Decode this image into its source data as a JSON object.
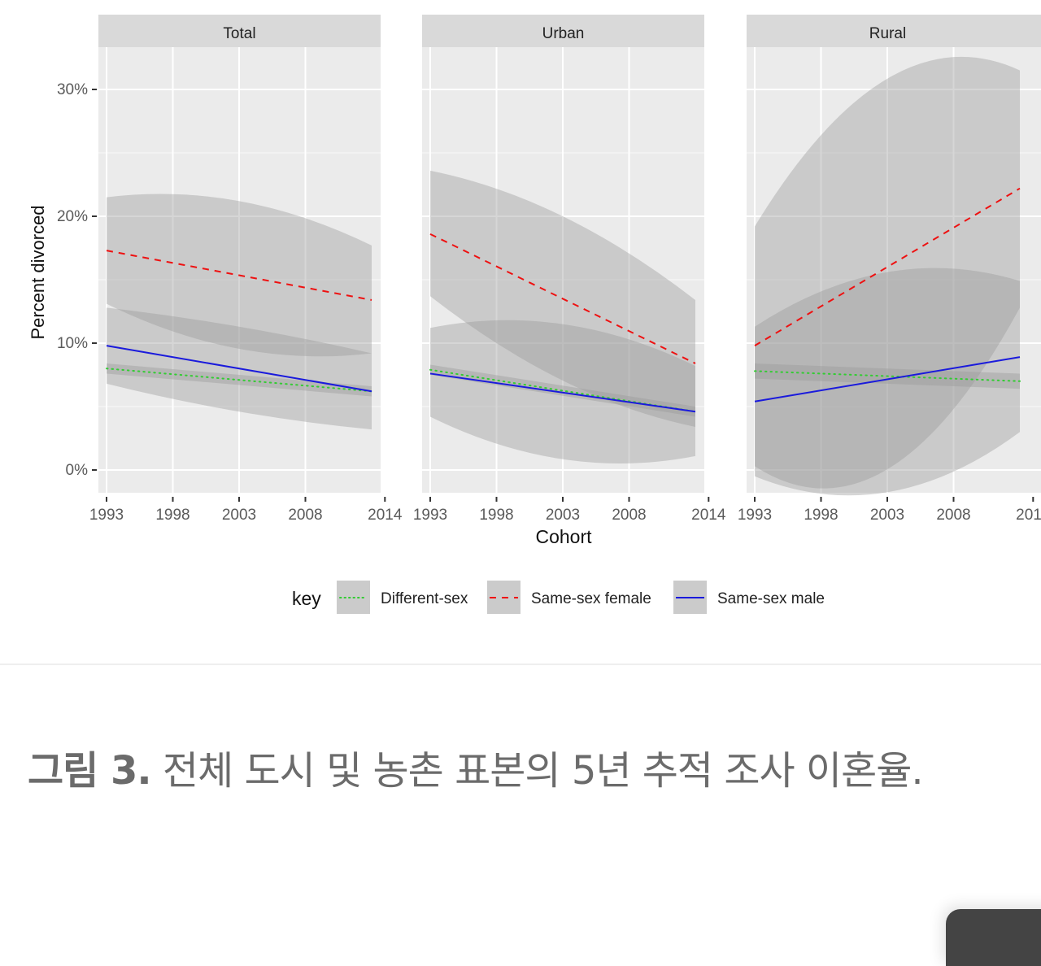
{
  "chart_data": {
    "type": "line",
    "title": "",
    "xlabel": "Cohort",
    "ylabel": "Percent divorced",
    "ylim": [
      -2,
      35
    ],
    "y_ticks": [
      "0%",
      "10%",
      "20%",
      "30%"
    ],
    "y_tick_values": [
      0,
      10,
      20,
      30
    ],
    "x_ticks": [
      "1993",
      "1998",
      "2003",
      "2008",
      "2014"
    ],
    "x_tick_values": [
      1993,
      1998,
      2003,
      2008,
      2014
    ],
    "grid": true,
    "legend": {
      "title": "key",
      "position": "bottom",
      "entries": [
        {
          "label": "Different-sex",
          "color": "#33cc33",
          "linetype": "dotted"
        },
        {
          "label": "Same-sex female",
          "color": "#ee1111",
          "linetype": "dashed"
        },
        {
          "label": "Same-sex male",
          "color": "#1a1adc",
          "linetype": "solid"
        }
      ]
    },
    "facets": [
      {
        "name": "Total",
        "x": [
          1993,
          2013
        ],
        "series": [
          {
            "name": "Different-sex",
            "values": [
              8.0,
              6.2
            ],
            "ci_lower": [
              7.6,
              5.8
            ],
            "ci_upper": [
              8.4,
              6.6
            ]
          },
          {
            "name": "Same-sex female",
            "values": [
              17.3,
              13.4
            ],
            "ci_lower": [
              13.1,
              9.2
            ],
            "ci_upper": [
              21.5,
              17.7
            ]
          },
          {
            "name": "Same-sex male",
            "values": [
              9.8,
              6.2
            ],
            "ci_lower": [
              6.8,
              3.2
            ],
            "ci_upper": [
              12.8,
              9.2
            ]
          }
        ]
      },
      {
        "name": "Urban",
        "x": [
          1993,
          2013
        ],
        "series": [
          {
            "name": "Different-sex",
            "values": [
              7.9,
              4.6
            ],
            "ci_lower": [
              7.5,
              4.2
            ],
            "ci_upper": [
              8.3,
              5.0
            ]
          },
          {
            "name": "Same-sex female",
            "values": [
              18.6,
              8.4
            ],
            "ci_lower": [
              13.7,
              3.4
            ],
            "ci_upper": [
              23.6,
              13.4
            ]
          },
          {
            "name": "Same-sex male",
            "values": [
              7.6,
              4.6
            ],
            "ci_lower": [
              4.2,
              1.1
            ],
            "ci_upper": [
              11.2,
              8.2
            ]
          }
        ]
      },
      {
        "name": "Rural",
        "x": [
          1993,
          2013
        ],
        "series": [
          {
            "name": "Different-sex",
            "values": [
              7.8,
              7.0
            ],
            "ci_lower": [
              7.2,
              6.4
            ],
            "ci_upper": [
              8.4,
              7.6
            ]
          },
          {
            "name": "Same-sex female",
            "values": [
              9.8,
              22.2
            ],
            "ci_lower": [
              0.3,
              12.8
            ],
            "ci_upper": [
              19.2,
              31.5
            ]
          },
          {
            "name": "Same-sex male",
            "values": [
              5.4,
              8.9
            ],
            "ci_lower": [
              -0.5,
              3.0
            ],
            "ci_upper": [
              11.3,
              14.9
            ]
          }
        ]
      }
    ]
  },
  "caption": {
    "figure_label": "그림 3.",
    "text": " 전체 도시 및 농촌 표본의 5년 추적 조사 이혼율."
  },
  "colors": {
    "panel_bg": "#ebebeb",
    "strip_bg": "#d9d9d9",
    "ribbon": "#bdbdbd",
    "different_sex": "#33cc33",
    "same_sex_female": "#ee1111",
    "same_sex_male": "#1a1adc"
  }
}
